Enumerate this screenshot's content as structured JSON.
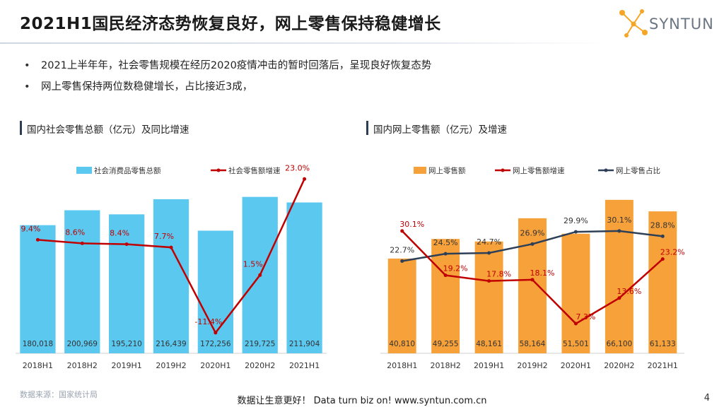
{
  "header": {
    "title": "2021H1国民经济态势恢复良好，网上零售保持稳健增长",
    "logo_text": "SYNTUN"
  },
  "bullets": [
    "2021上半年年，社会零售规模在经历2020疫情冲击的暂时回落后，呈现良好恢复态势",
    "网上零售保持两位数稳健增长，占比接近3成，"
  ],
  "left_section_title": "国内社会零售总额（亿元）及同比增速",
  "right_section_title": "国内网上零售额（亿元）及增速",
  "source": "数据来源：国家统计局",
  "footer": "数据让生意更好！ Data turn biz on!  www.syntun.com.cn",
  "page_number": "4",
  "colors": {
    "left_bar": "#5bc8f0",
    "right_bar": "#f7a13a",
    "growth_line": "#c00000",
    "share_line": "#2e3f58"
  },
  "chart_data": [
    {
      "type": "bar",
      "categories": [
        "2018H1",
        "2018H2",
        "2019H1",
        "2019H2",
        "2020H1",
        "2020H2",
        "2021H1"
      ],
      "series": [
        {
          "name": "社会消费品零售总额",
          "type": "bar",
          "axis": "left",
          "values": [
            180018,
            200969,
            195210,
            216439,
            172256,
            219725,
            211904
          ],
          "labels": [
            "180,018",
            "200,969",
            "195,210",
            "216,439",
            "172,256",
            "219,725",
            "211,904"
          ]
        },
        {
          "name": "社会零售额增速",
          "type": "line",
          "axis": "right",
          "values": [
            9.4,
            8.6,
            8.4,
            7.7,
            -11.4,
            1.5,
            23.0
          ],
          "labels": [
            "9.4%",
            "8.6%",
            "8.4%",
            "7.7%",
            "-11.4%",
            "1.5%",
            "23.0%"
          ]
        }
      ],
      "legend": "top"
    },
    {
      "type": "bar",
      "categories": [
        "2018H1",
        "2018H2",
        "2019H1",
        "2019H2",
        "2020H1",
        "2020H2",
        "2021H1"
      ],
      "series": [
        {
          "name": "网上零售额",
          "type": "bar",
          "axis": "left",
          "values": [
            40810,
            49255,
            48161,
            58164,
            51501,
            66100,
            61133
          ],
          "labels": [
            "40,810",
            "49,255",
            "48,161",
            "58,164",
            "51,501",
            "66,100",
            "61,133"
          ]
        },
        {
          "name": "网上零售额增速",
          "type": "line",
          "axis": "right",
          "values": [
            30.1,
            19.2,
            17.8,
            18.1,
            7.3,
            13.6,
            23.2
          ],
          "labels": [
            "30.1%",
            "19.2%",
            "17.8%",
            "18.1%",
            "7.3%",
            "13.6%",
            "23.2%"
          ]
        },
        {
          "name": "网上零售占比",
          "type": "line",
          "axis": "right",
          "values": [
            22.7,
            24.5,
            24.7,
            26.9,
            29.9,
            30.1,
            28.8
          ],
          "labels": [
            "22.7%",
            "24.5%",
            "24.7%",
            "26.9%",
            "29.9%",
            "30.1%",
            "28.8%"
          ]
        }
      ],
      "legend": "top"
    }
  ]
}
